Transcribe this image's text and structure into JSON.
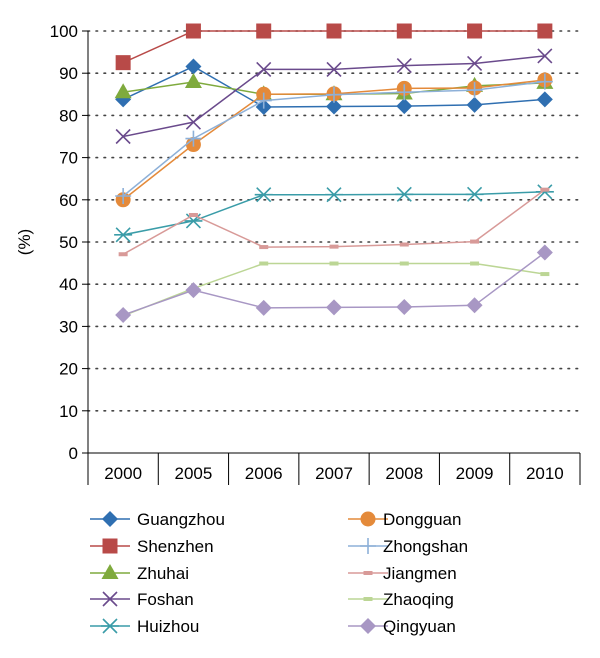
{
  "chart_data": {
    "type": "line",
    "title": "",
    "xlabel": "",
    "ylabel": "(%)",
    "ylim": [
      0,
      100
    ],
    "yticks": [
      0,
      10,
      20,
      30,
      40,
      50,
      60,
      70,
      80,
      90,
      100
    ],
    "categories": [
      "2000",
      "2005",
      "2006",
      "2007",
      "2008",
      "2009",
      "2010"
    ],
    "grid": "horizontal dotted",
    "legend_position": "bottom, two columns",
    "series": [
      {
        "name": "Guangzhou",
        "color": "#2f6fb1",
        "marker": "diamond",
        "values": [
          83.8,
          91.6,
          82.0,
          82.1,
          82.2,
          82.5,
          83.8
        ]
      },
      {
        "name": "Shenzhen",
        "color": "#b84a48",
        "marker": "square",
        "values": [
          92.5,
          100,
          100,
          100,
          100,
          100,
          100
        ]
      },
      {
        "name": "Zhuhai",
        "color": "#7faa3d",
        "marker": "triangle",
        "values": [
          85.5,
          87.9,
          85.0,
          85.0,
          85.2,
          87.0,
          87.7
        ]
      },
      {
        "name": "Foshan",
        "color": "#6a4a8c",
        "marker": "x",
        "values": [
          75.0,
          78.4,
          90.9,
          90.9,
          91.8,
          92.3,
          94.1
        ]
      },
      {
        "name": "Huizhou",
        "color": "#3a9ca8",
        "marker": "asterisk",
        "values": [
          51.7,
          55.0,
          61.2,
          61.2,
          61.3,
          61.3,
          61.9
        ]
      },
      {
        "name": "Dongguan",
        "color": "#e48a3a",
        "marker": "circle",
        "values": [
          60.0,
          73.1,
          85.0,
          85.1,
          86.4,
          86.5,
          88.4
        ]
      },
      {
        "name": "Zhongshan",
        "color": "#8db0d8",
        "marker": "plus",
        "values": [
          60.9,
          74.5,
          83.5,
          84.9,
          85.5,
          86.0,
          88.0
        ]
      },
      {
        "name": "Jiangmen",
        "color": "#d89a98",
        "marker": "dash",
        "values": [
          47.1,
          56.4,
          48.8,
          48.9,
          49.4,
          50.1,
          62.4
        ]
      },
      {
        "name": "Zhaoqing",
        "color": "#bcd695",
        "marker": "dash",
        "values": [
          32.5,
          39.0,
          44.9,
          44.9,
          44.9,
          44.9,
          42.4
        ]
      },
      {
        "name": "Qingyuan",
        "color": "#a897c4",
        "marker": "diamond",
        "values": [
          32.7,
          38.6,
          34.4,
          34.5,
          34.6,
          35.0,
          47.5
        ]
      }
    ]
  }
}
